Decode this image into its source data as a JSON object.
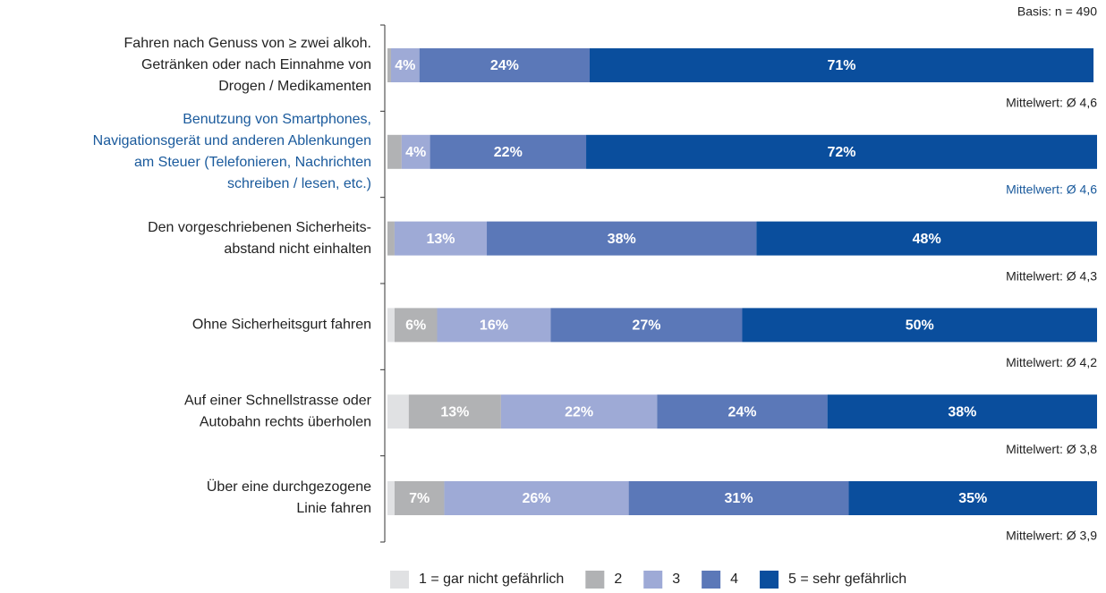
{
  "chart_data": {
    "type": "stacked_bar_horizontal",
    "note": "Basis: n = 490",
    "categories": [
      [
        "Fahren nach Genuss von ≥ zwei alkoh.",
        "Getränken oder nach Einnahme von",
        "Drogen / Medikamenten"
      ],
      [
        "Benutzung von Smartphones,",
        "Navigationsgerät und anderen Ablenkungen",
        "am Steuer (Telefonieren, Nachrichten",
        "schreiben / lesen, etc.)"
      ],
      [
        "Den vorgeschriebenen Sicherheits-",
        "abstand nicht einhalten"
      ],
      [
        "Ohne Sicherheitsgurt fahren"
      ],
      [
        "Auf einer Schnellstrasse oder",
        "Autobahn rechts überholen"
      ],
      [
        "Über eine durchgezogene",
        "Linie fahren"
      ]
    ],
    "highlight": 1,
    "highlight_color": "#1a5a9c",
    "annotations": [
      "Mittelwert: Ø 4,6",
      "Mittelwert: Ø 4,6",
      "Mittelwert: Ø 4,3",
      "Mittelwert: Ø 4,2",
      "Mittelwert: Ø 3,8",
      "Mittelwert: Ø 3,9"
    ],
    "xlim": [
      0,
      100
    ],
    "series": [
      {
        "name": "1 = gar nicht gefährlich",
        "color": "#e0e1e3",
        "values": [
          0,
          0,
          0,
          1,
          3,
          1
        ],
        "value_labels": [
          null,
          null,
          null,
          null,
          null,
          null
        ]
      },
      {
        "name": "2",
        "color": "#b1b2b4",
        "values": [
          0.5,
          2,
          1,
          6,
          13,
          7
        ],
        "value_labels": [
          null,
          null,
          null,
          "6%",
          "13%",
          "7%"
        ]
      },
      {
        "name": "3",
        "color": "#9eaad6",
        "values": [
          4,
          4,
          13,
          16,
          22,
          26
        ],
        "value_labels": [
          "4%",
          "4%",
          "13%",
          "16%",
          "22%",
          "26%"
        ]
      },
      {
        "name": "4",
        "color": "#5b78b8",
        "values": [
          24,
          22,
          38,
          27,
          24,
          31
        ],
        "value_labels": [
          "24%",
          "22%",
          "38%",
          "27%",
          "24%",
          "31%"
        ]
      },
      {
        "name": "5 = sehr gefährlich",
        "color": "#0a4e9d",
        "values": [
          71,
          72,
          48,
          50,
          38,
          35
        ],
        "value_labels": [
          "71%",
          "72%",
          "48%",
          "50%",
          "38%",
          "35%"
        ]
      }
    ]
  }
}
